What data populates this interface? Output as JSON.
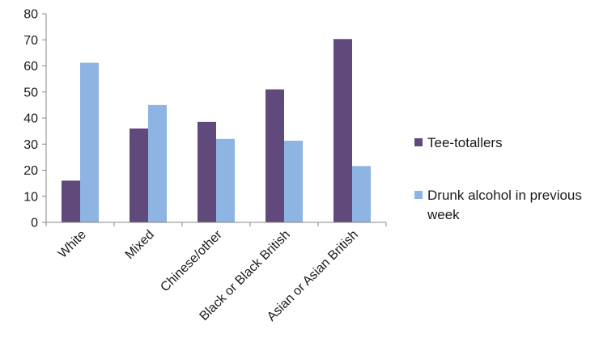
{
  "chart_data": {
    "type": "bar",
    "categories": [
      "White",
      "Mixed",
      "Chinese/other",
      "Black or Black British",
      "Asian or Asian British"
    ],
    "series": [
      {
        "name": "Tee-totallers",
        "color": "#604a7b",
        "values": [
          16,
          36,
          38.5,
          51,
          70.3
        ]
      },
      {
        "name": "Drunk alcohol in previous week",
        "color": "#8eb4e3",
        "values": [
          61.2,
          45,
          32,
          31.3,
          21.6
        ]
      }
    ],
    "ylim": [
      0,
      80
    ],
    "yticks": [
      0,
      10,
      20,
      30,
      40,
      50,
      60,
      70,
      80
    ],
    "legend": {
      "position": "right",
      "items": [
        {
          "lines": [
            "Tee-totallers"
          ]
        },
        {
          "lines": [
            "Drunk alcohol in previous",
            "week"
          ]
        }
      ]
    },
    "grid": false
  }
}
